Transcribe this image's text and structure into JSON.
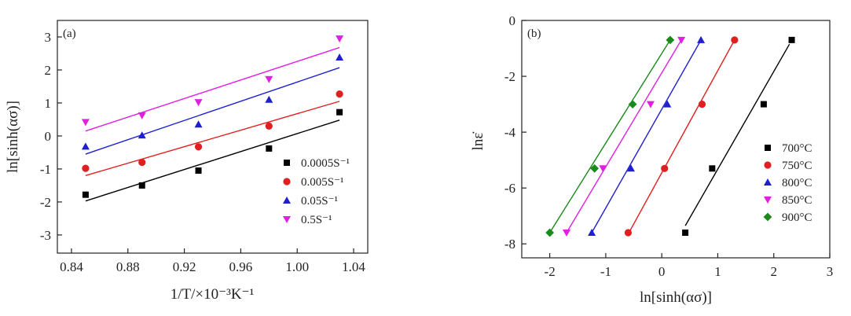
{
  "chart_data": [
    {
      "type": "scatter",
      "panel_label": "(a)",
      "xlabel": "1/T/×10⁻³K⁻¹",
      "ylabel": "ln[sinh(ασ)]",
      "xlim": [
        0.83,
        1.05
      ],
      "ylim": [
        -3.55,
        3.5
      ],
      "xticks": [
        0.84,
        0.88,
        0.92,
        0.96,
        1.0,
        1.04
      ],
      "xtick_labels": [
        "0.84",
        "0.88",
        "0.92",
        "0.96",
        "1.00",
        "1.04"
      ],
      "yticks": [
        -3,
        -2,
        -1,
        0,
        1,
        2,
        3
      ],
      "ytick_labels": [
        "-3",
        "-2",
        "-1",
        "0",
        "1",
        "2",
        "3"
      ],
      "legend_position": "right",
      "series": [
        {
          "name": "0.0005S⁻¹",
          "marker": "square",
          "color": "#000000",
          "x": [
            0.85,
            0.89,
            0.93,
            0.98,
            1.03
          ],
          "y": [
            -1.78,
            -1.5,
            -1.05,
            -0.38,
            0.72
          ],
          "fit": [
            [
              0.85,
              -1.97
            ],
            [
              1.03,
              0.48
            ]
          ]
        },
        {
          "name": "0.005S⁻¹",
          "marker": "circle",
          "color": "#e02020",
          "x": [
            0.85,
            0.89,
            0.93,
            0.98,
            1.03
          ],
          "y": [
            -0.98,
            -0.8,
            -0.33,
            0.3,
            1.27
          ],
          "fit": [
            [
              0.85,
              -1.2
            ],
            [
              1.03,
              1.05
            ]
          ]
        },
        {
          "name": "0.05S⁻¹",
          "marker": "triangle-up",
          "color": "#1f1fcf",
          "x": [
            0.85,
            0.89,
            0.93,
            0.98,
            1.03
          ],
          "y": [
            -0.32,
            0.02,
            0.35,
            1.1,
            2.38
          ],
          "fit": [
            [
              0.85,
              -0.55
            ],
            [
              1.03,
              2.07
            ]
          ]
        },
        {
          "name": "0.5S⁻¹",
          "marker": "triangle-down",
          "color": "#e020e0",
          "x": [
            0.85,
            0.89,
            0.93,
            0.98,
            1.03
          ],
          "y": [
            0.42,
            0.62,
            1.02,
            1.72,
            2.95
          ],
          "fit": [
            [
              0.85,
              0.15
            ],
            [
              1.03,
              2.68
            ]
          ]
        }
      ]
    },
    {
      "type": "scatter",
      "panel_label": "(b)",
      "xlabel": "ln[sinh(ασ)]",
      "ylabel": "lnε̇",
      "xlim": [
        -2.5,
        3.0
      ],
      "ylim": [
        -8.5,
        0.0
      ],
      "xticks": [
        -2,
        -1,
        0,
        1,
        2,
        3
      ],
      "xtick_labels": [
        "-2",
        "-1",
        "0",
        "1",
        "2",
        "3"
      ],
      "yticks": [
        -8,
        -6,
        -4,
        -2,
        0
      ],
      "ytick_labels": [
        "-8",
        "-6",
        "-4",
        "-2",
        "0"
      ],
      "legend_position": "right",
      "series": [
        {
          "name": "700°C",
          "marker": "square",
          "color": "#000000",
          "x": [
            0.42,
            0.9,
            1.82,
            2.32
          ],
          "y": [
            -7.6,
            -5.3,
            -3.0,
            -0.7
          ],
          "fit": [
            [
              0.42,
              -7.35
            ],
            [
              2.28,
              -0.85
            ]
          ]
        },
        {
          "name": "750°C",
          "marker": "circle",
          "color": "#e02020",
          "x": [
            -0.6,
            0.05,
            0.72,
            1.3
          ],
          "y": [
            -7.6,
            -5.3,
            -3.0,
            -0.7
          ],
          "fit": [
            [
              -0.6,
              -7.65
            ],
            [
              1.3,
              -0.7
            ]
          ]
        },
        {
          "name": "800°C",
          "marker": "triangle-up",
          "color": "#1f1fcf",
          "x": [
            -1.25,
            -0.55,
            0.1,
            0.7
          ],
          "y": [
            -7.6,
            -5.3,
            -3.0,
            -0.7
          ],
          "fit": [
            [
              -1.25,
              -7.6
            ],
            [
              0.7,
              -0.7
            ]
          ]
        },
        {
          "name": "850°C",
          "marker": "triangle-down",
          "color": "#e020e0",
          "x": [
            -1.7,
            -1.05,
            -0.2,
            0.35
          ],
          "y": [
            -7.6,
            -5.3,
            -3.0,
            -0.7
          ],
          "fit": [
            [
              -1.7,
              -7.6
            ],
            [
              0.35,
              -0.7
            ]
          ]
        },
        {
          "name": "900°C",
          "marker": "diamond",
          "color": "#1a8a1a",
          "x": [
            -2.0,
            -1.2,
            -0.52,
            0.15
          ],
          "y": [
            -7.6,
            -5.3,
            -3.0,
            -0.7
          ],
          "fit": [
            [
              -2.0,
              -7.6
            ],
            [
              0.15,
              -0.7
            ]
          ]
        }
      ]
    }
  ]
}
